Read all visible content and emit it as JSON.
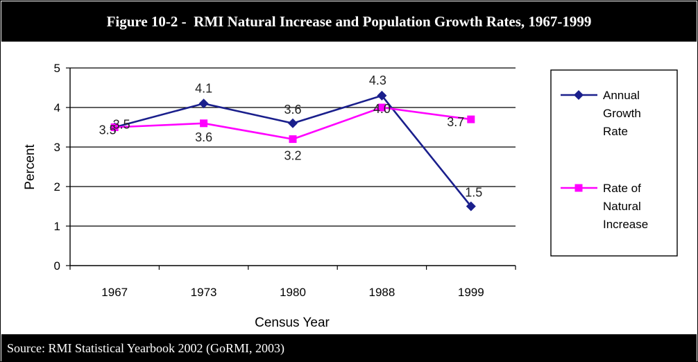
{
  "title": "Figure 10-2 -  RMI Natural Increase and Population Growth Rates, 1967-1999",
  "source": "Source: RMI Statistical Yearbook 2002 (GoRMI, 2003)",
  "chart_data": {
    "type": "line",
    "categories": [
      "1967",
      "1973",
      "1980",
      "1988",
      "1999"
    ],
    "xlabel": "Census Year",
    "ylabel": "Percent",
    "ylim": [
      0,
      5
    ],
    "yticks": [
      "0",
      "1",
      "2",
      "3",
      "4",
      "5"
    ],
    "grid": true,
    "legend": "right",
    "series": [
      {
        "name": "Annual Growth Rate",
        "legend_lines": [
          "Annual",
          "Growth",
          "Rate"
        ],
        "color": "#1a1f8c",
        "marker": "diamond",
        "values": [
          3.5,
          4.1,
          3.6,
          4.3,
          1.5
        ],
        "labels": [
          "3.5",
          "4.1",
          "3.6",
          "4.3",
          "1.5"
        ]
      },
      {
        "name": "Rate of Natural Increase",
        "legend_lines": [
          "Rate of",
          "Natural",
          "Increase"
        ],
        "color": "#ff00ff",
        "marker": "square",
        "values": [
          3.5,
          3.6,
          3.2,
          4.0,
          3.7
        ],
        "labels": [
          "3.5",
          "3.6",
          "3.2",
          "4.0",
          "3.7"
        ]
      }
    ]
  }
}
